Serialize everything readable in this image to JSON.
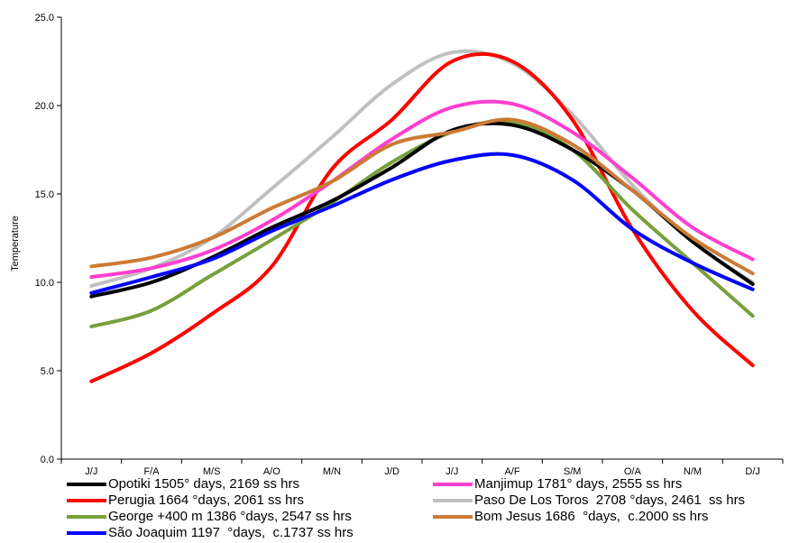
{
  "chart_data": {
    "type": "line",
    "ylabel": "Temperature",
    "xlabel": "",
    "ylim": [
      0,
      25
    ],
    "yticks": [
      "0.0",
      "5.0",
      "10.0",
      "15.0",
      "20.0",
      "25.0"
    ],
    "categories": [
      "J/J",
      "F/A",
      "M/S",
      "A/O",
      "M/N",
      "J/D",
      "J/J",
      "A/F",
      "S/M",
      "O/A",
      "N/M",
      "D/J"
    ],
    "legend_position": "bottom",
    "series": [
      {
        "name": "Opotiki 1505° days, 2169 ss hrs",
        "color": "#000000",
        "values": [
          9.2,
          10.0,
          11.4,
          13.1,
          14.6,
          16.5,
          18.6,
          18.9,
          17.5,
          15.2,
          12.3,
          9.9
        ]
      },
      {
        "name": "Manjimup 1781° days, 2555 ss hrs",
        "color": "#ff3fcf",
        "values": [
          10.3,
          10.8,
          11.8,
          13.5,
          15.7,
          18.1,
          19.9,
          20.1,
          18.5,
          15.9,
          13.1,
          11.3
        ]
      },
      {
        "name": "Perugia 1664 °days, 2061 ss hrs",
        "color": "#ff0000",
        "values": [
          4.4,
          6.0,
          8.2,
          10.9,
          16.4,
          19.2,
          22.5,
          22.5,
          19.2,
          13.0,
          8.4,
          5.3
        ]
      },
      {
        "name": "Paso De Los Toros  2708 °days, 2461  ss hrs",
        "color": "#c0c0c0",
        "values": [
          9.8,
          10.8,
          12.5,
          15.3,
          18.2,
          21.2,
          23.0,
          22.4,
          19.5,
          15.5,
          12.3,
          10.0
        ]
      },
      {
        "name": "George +400 m 1386 °days, 2547 ss hrs",
        "color": "#77a03b",
        "values": [
          7.5,
          8.4,
          10.4,
          12.4,
          14.5,
          16.8,
          18.5,
          19.1,
          17.5,
          14.1,
          11.1,
          8.1
        ]
      },
      {
        "name": "Bom Jesus 1686  °days,  c.2000 ss hrs",
        "color": "#cc7a35",
        "values": [
          10.9,
          11.4,
          12.5,
          14.2,
          15.7,
          17.8,
          18.5,
          19.2,
          17.8,
          15.2,
          12.5,
          10.5
        ]
      },
      {
        "name": "São Joaquim 1197  °days,  c.1737 ss hrs",
        "color": "#0000ff",
        "values": [
          9.4,
          10.3,
          11.3,
          12.9,
          14.3,
          15.8,
          16.9,
          17.2,
          15.8,
          13.0,
          11.1,
          9.6
        ]
      }
    ]
  }
}
